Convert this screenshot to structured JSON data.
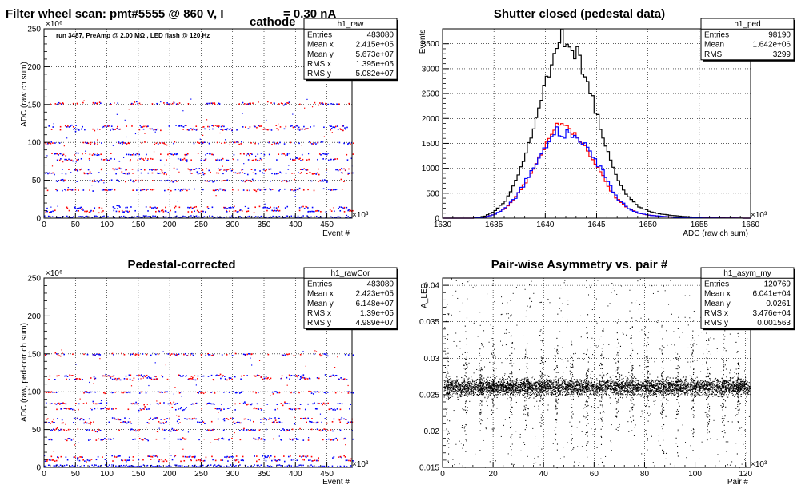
{
  "colors": {
    "blue": "#0000ff",
    "red": "#ff0000",
    "black": "#000000",
    "grid": "#000000"
  },
  "chart_data": [
    {
      "type": "scatter",
      "title_parts": [
        "Filter wheel scan: pmt#5555 @   860 V, I",
        "cathode",
        "= 0.30 nA"
      ],
      "annotation": "run 3487, PreAmp @ 2.00 MΩ , LED flash @  120 Hz",
      "xlabel": "Event #",
      "ylabel": "ADC (raw ch sum)",
      "x_exponent": "×10³",
      "y_exponent": "×10⁶",
      "xlim": [
        0,
        490
      ],
      "ylim": [
        0,
        250
      ],
      "xticks": [
        0,
        50,
        100,
        150,
        200,
        250,
        300,
        350,
        400,
        450
      ],
      "yticks": [
        0,
        50,
        100,
        150,
        200,
        250
      ],
      "grid": true,
      "steps_y": [
        10,
        15,
        38,
        50,
        60,
        65,
        78,
        85,
        100,
        118,
        122,
        152
      ],
      "stats": {
        "name": "h1_raw",
        "rows": [
          [
            "Entries",
            "483080"
          ],
          [
            "Mean x",
            "2.415e+05"
          ],
          [
            "Mean y",
            "5.673e+07"
          ],
          [
            "RMS x",
            "1.395e+05"
          ],
          [
            "RMS y",
            "5.082e+07"
          ]
        ]
      }
    },
    {
      "type": "line",
      "title": "Shutter closed (pedestal data)",
      "xlabel": "ADC (raw ch sum)",
      "ylabel": "Events",
      "x_exponent": "×10³",
      "xlim": [
        1630,
        1660
      ],
      "ylim": [
        0,
        3800
      ],
      "xticks": [
        1630,
        1635,
        1640,
        1645,
        1650,
        1655,
        1660
      ],
      "yticks": [
        0,
        500,
        1000,
        1500,
        2000,
        2500,
        3000,
        3500
      ],
      "grid": true,
      "series": [
        {
          "color": "black",
          "x": [
            1633,
            1634,
            1635,
            1636,
            1637,
            1638,
            1639,
            1640,
            1641,
            1642,
            1643,
            1644,
            1645,
            1646,
            1647,
            1648,
            1649,
            1650,
            1651,
            1652,
            1653,
            1654,
            1655,
            1656,
            1657,
            1658,
            1659
          ],
          "y": [
            5,
            40,
            150,
            350,
            750,
            1300,
            2000,
            2800,
            3500,
            3550,
            3300,
            2750,
            2000,
            1300,
            750,
            420,
            230,
            140,
            90,
            60,
            40,
            25,
            15,
            10,
            6,
            4,
            2
          ]
        },
        {
          "color": "red",
          "x": [
            1633,
            1634,
            1635,
            1636,
            1637,
            1638,
            1639,
            1640,
            1641,
            1642,
            1643,
            1644,
            1645,
            1646,
            1647,
            1648,
            1649,
            1650,
            1651,
            1652,
            1653,
            1654,
            1655,
            1656,
            1657,
            1658,
            1659
          ],
          "y": [
            3,
            20,
            80,
            200,
            420,
            720,
            1100,
            1500,
            1870,
            1860,
            1650,
            1350,
            1000,
            640,
            360,
            190,
            100,
            60,
            40,
            25,
            15,
            10,
            6,
            4,
            3,
            2,
            1
          ]
        },
        {
          "color": "blue",
          "x": [
            1633,
            1634,
            1635,
            1636,
            1637,
            1638,
            1639,
            1640,
            1641,
            1642,
            1643,
            1644,
            1645,
            1646,
            1647,
            1648,
            1649,
            1650,
            1651,
            1652,
            1653,
            1654,
            1655,
            1656,
            1657,
            1658,
            1659
          ],
          "y": [
            3,
            20,
            80,
            210,
            430,
            740,
            1100,
            1450,
            1680,
            1700,
            1600,
            1420,
            1120,
            720,
            380,
            190,
            100,
            60,
            40,
            25,
            15,
            10,
            6,
            4,
            3,
            2,
            1
          ]
        }
      ],
      "stats": {
        "name": "h1_ped",
        "rows": [
          [
            "Entries",
            "98190"
          ],
          [
            "Mean",
            "1.642e+06"
          ],
          [
            "RMS",
            "3299"
          ]
        ]
      }
    },
    {
      "type": "scatter",
      "title": "Pedestal-corrected",
      "xlabel": "Event #",
      "ylabel": "ADC (raw, ped-corr ch sum)",
      "x_exponent": "×10³",
      "y_exponent": "×10⁶",
      "xlim": [
        0,
        490
      ],
      "ylim": [
        0,
        250
      ],
      "xticks": [
        0,
        50,
        100,
        150,
        200,
        250,
        300,
        350,
        400,
        450
      ],
      "yticks": [
        0,
        50,
        100,
        150,
        200,
        250
      ],
      "grid": true,
      "steps_y": [
        10,
        15,
        38,
        50,
        60,
        65,
        78,
        85,
        100,
        118,
        122,
        150
      ],
      "stats": {
        "name": "h1_rawCor",
        "rows": [
          [
            "Entries",
            "483080"
          ],
          [
            "Mean x",
            "2.423e+05"
          ],
          [
            "Mean y",
            "6.148e+07"
          ],
          [
            "RMS x",
            "1.39e+05"
          ],
          [
            "RMS y",
            "4.989e+07"
          ]
        ]
      }
    },
    {
      "type": "scatter",
      "title": "Pair-wise Asymmetry vs. pair #",
      "xlabel": "Pair #",
      "ylabel": "A_LED",
      "x_exponent": "×10³",
      "xlim": [
        0,
        122
      ],
      "ylim": [
        0.015,
        0.041
      ],
      "xticks": [
        0,
        20,
        40,
        60,
        80,
        100,
        120
      ],
      "yticks": [
        0.015,
        0.02,
        0.025,
        0.03,
        0.035,
        0.04
      ],
      "ytick_labels": [
        "0.015",
        "0.02",
        "0.025",
        "0.03",
        "0.035",
        "0.04"
      ],
      "grid": true,
      "band_center": 0.0261,
      "spike_x": [
        2,
        9,
        15,
        20,
        27,
        33,
        39,
        45,
        51,
        57,
        63,
        69,
        75,
        81,
        87,
        93,
        99,
        105,
        111,
        117
      ],
      "stats": {
        "name": "h1_asym_my",
        "rows": [
          [
            "Entries",
            "120769"
          ],
          [
            "Mean x",
            "6.041e+04"
          ],
          [
            "Mean y",
            "0.0261"
          ],
          [
            "RMS x",
            "3.476e+04"
          ],
          [
            "RMS y",
            "0.001563"
          ]
        ]
      }
    }
  ]
}
